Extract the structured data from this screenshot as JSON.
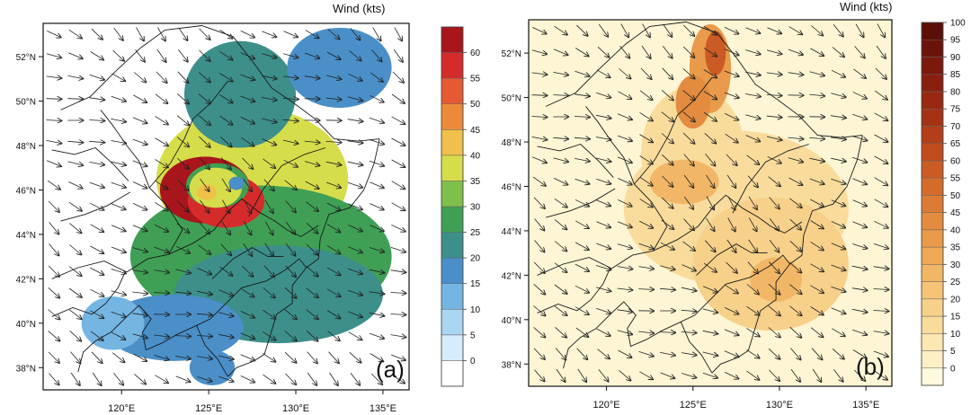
{
  "panels": [
    {
      "id": "a",
      "panel_label": "(a)",
      "colorbar_title": "Wind (kts)",
      "background": "#ffffff",
      "colorbar": {
        "levels": [
          "0",
          "5",
          "10",
          "15",
          "20",
          "25",
          "30",
          "35",
          "40",
          "45",
          "50",
          "55",
          "60"
        ],
        "colors": [
          "#ffffff",
          "#d6ecfa",
          "#a9d6f2",
          "#74b5e2",
          "#4a8fc8",
          "#3d8f8a",
          "#3fa055",
          "#7fc04a",
          "#d6dd4a",
          "#f0c04a",
          "#ec8a3a",
          "#e65a33",
          "#d52b2b",
          "#a8161c"
        ]
      }
    },
    {
      "id": "b",
      "panel_label": "(b)",
      "colorbar_title": "Wind (kts)",
      "background": "#fdf5d3",
      "colorbar": {
        "levels": [
          "0",
          "5",
          "10",
          "15",
          "20",
          "25",
          "30",
          "35",
          "40",
          "45",
          "50",
          "55",
          "60",
          "65",
          "70",
          "75",
          "80",
          "85",
          "90",
          "95",
          "100"
        ],
        "colors": [
          "#fef8dc",
          "#fdf0c6",
          "#fbe7b1",
          "#f9dc9c",
          "#f7d089",
          "#f5c477",
          "#f2b766",
          "#eea957",
          "#e99a4a",
          "#e38b3e",
          "#dc7b34",
          "#d46b2b",
          "#cb5b24",
          "#c04c1e",
          "#b43e19",
          "#a63215",
          "#982812",
          "#89200f",
          "#7a190c",
          "#6b130a",
          "#5c0e08"
        ]
      }
    }
  ],
  "chart_data": [
    {
      "type": "heatmap",
      "panel": "(a)",
      "colorbar_title": "Wind (kts)",
      "colorbar_levels": [
        0,
        5,
        10,
        15,
        20,
        25,
        30,
        35,
        40,
        45,
        50,
        55,
        60
      ],
      "xticks": [
        "120°E",
        "125°E",
        "130°E",
        "135°E"
      ],
      "yticks": [
        "38°N",
        "40°N",
        "42°N",
        "44°N",
        "46°N",
        "48°N",
        "50°N",
        "52°N"
      ],
      "xlim": [
        115.5,
        136.5
      ],
      "ylim": [
        37.0,
        53.5
      ],
      "field": "shading",
      "blobs": [
        {
          "lon": 127.5,
          "lat": 46.5,
          "rlon": 5.5,
          "rlat": 3.2,
          "value": 8
        },
        {
          "lon": 128.0,
          "lat": 43.0,
          "rlon": 7.5,
          "rlat": 3.2,
          "value": 6
        },
        {
          "lon": 129.0,
          "lat": 41.3,
          "rlon": 6.0,
          "rlat": 2.2,
          "value": 5
        },
        {
          "lon": 126.8,
          "lat": 50.3,
          "rlon": 3.2,
          "rlat": 2.4,
          "value": 5
        },
        {
          "lon": 132.5,
          "lat": 51.5,
          "rlon": 3.0,
          "rlat": 1.8,
          "value": 4
        },
        {
          "lon": 123.0,
          "lat": 39.8,
          "rlon": 4.0,
          "rlat": 1.5,
          "value": 4
        },
        {
          "lon": 119.5,
          "lat": 40.0,
          "rlon": 1.8,
          "rlat": 1.2,
          "value": 3
        },
        {
          "lon": 125.2,
          "lat": 38.0,
          "rlon": 1.3,
          "rlat": 0.8,
          "value": 4
        },
        {
          "lon": 124.8,
          "lat": 46.0,
          "rlon": 2.6,
          "rlat": 1.5,
          "value": 14
        },
        {
          "lon": 126.0,
          "lat": 45.5,
          "rlon": 2.2,
          "rlat": 1.2,
          "value": 12
        },
        {
          "lon": 125.5,
          "lat": 46.2,
          "rlon": 1.8,
          "rlat": 1.0,
          "value": 6
        },
        {
          "lon": 125.4,
          "lat": 46.1,
          "rlon": 1.5,
          "rlat": 0.9,
          "value": 8
        },
        {
          "lon": 124.9,
          "lat": 45.9,
          "rlon": 0.55,
          "rlat": 0.35,
          "value": 9
        },
        {
          "lon": 126.6,
          "lat": 46.3,
          "rlon": 0.45,
          "rlat": 0.3,
          "value": 4
        }
      ],
      "vectors": "unit-length arrows, predominantly north-westerly flow"
    },
    {
      "type": "heatmap",
      "panel": "(b)",
      "colorbar_title": "Wind (kts)",
      "colorbar_levels": [
        0,
        5,
        10,
        15,
        20,
        25,
        30,
        35,
        40,
        45,
        50,
        55,
        60,
        65,
        70,
        75,
        80,
        85,
        90,
        95,
        100
      ],
      "xticks": [
        "120°E",
        "125°E",
        "130°E",
        "135°E"
      ],
      "yticks": [
        "38°N",
        "40°N",
        "42°N",
        "44°N",
        "46°N",
        "48°N",
        "50°N",
        "52°N"
      ],
      "xlim": [
        115.5,
        136.5
      ],
      "ylim": [
        37.0,
        53.5
      ],
      "field": "shading",
      "blobs": [
        {
          "lon": 127.5,
          "lat": 45.0,
          "rlon": 6.5,
          "rlat": 3.5,
          "value": 3
        },
        {
          "lon": 129.5,
          "lat": 42.5,
          "rlon": 4.5,
          "rlat": 3.0,
          "value": 4
        },
        {
          "lon": 125.0,
          "lat": 47.5,
          "rlon": 3.0,
          "rlat": 3.0,
          "value": 3
        },
        {
          "lon": 126.0,
          "lat": 51.3,
          "rlon": 1.2,
          "rlat": 2.0,
          "value": 8
        },
        {
          "lon": 125.0,
          "lat": 49.8,
          "rlon": 1.0,
          "rlat": 1.2,
          "value": 9
        },
        {
          "lon": 126.3,
          "lat": 52.0,
          "rlon": 0.6,
          "rlat": 1.0,
          "value": 12
        },
        {
          "lon": 124.5,
          "lat": 46.2,
          "rlon": 2.0,
          "rlat": 1.0,
          "value": 6
        },
        {
          "lon": 129.8,
          "lat": 41.8,
          "rlon": 1.5,
          "rlat": 1.0,
          "value": 6
        }
      ],
      "vectors": "unit-length arrows, predominantly north-westerly flow"
    }
  ]
}
